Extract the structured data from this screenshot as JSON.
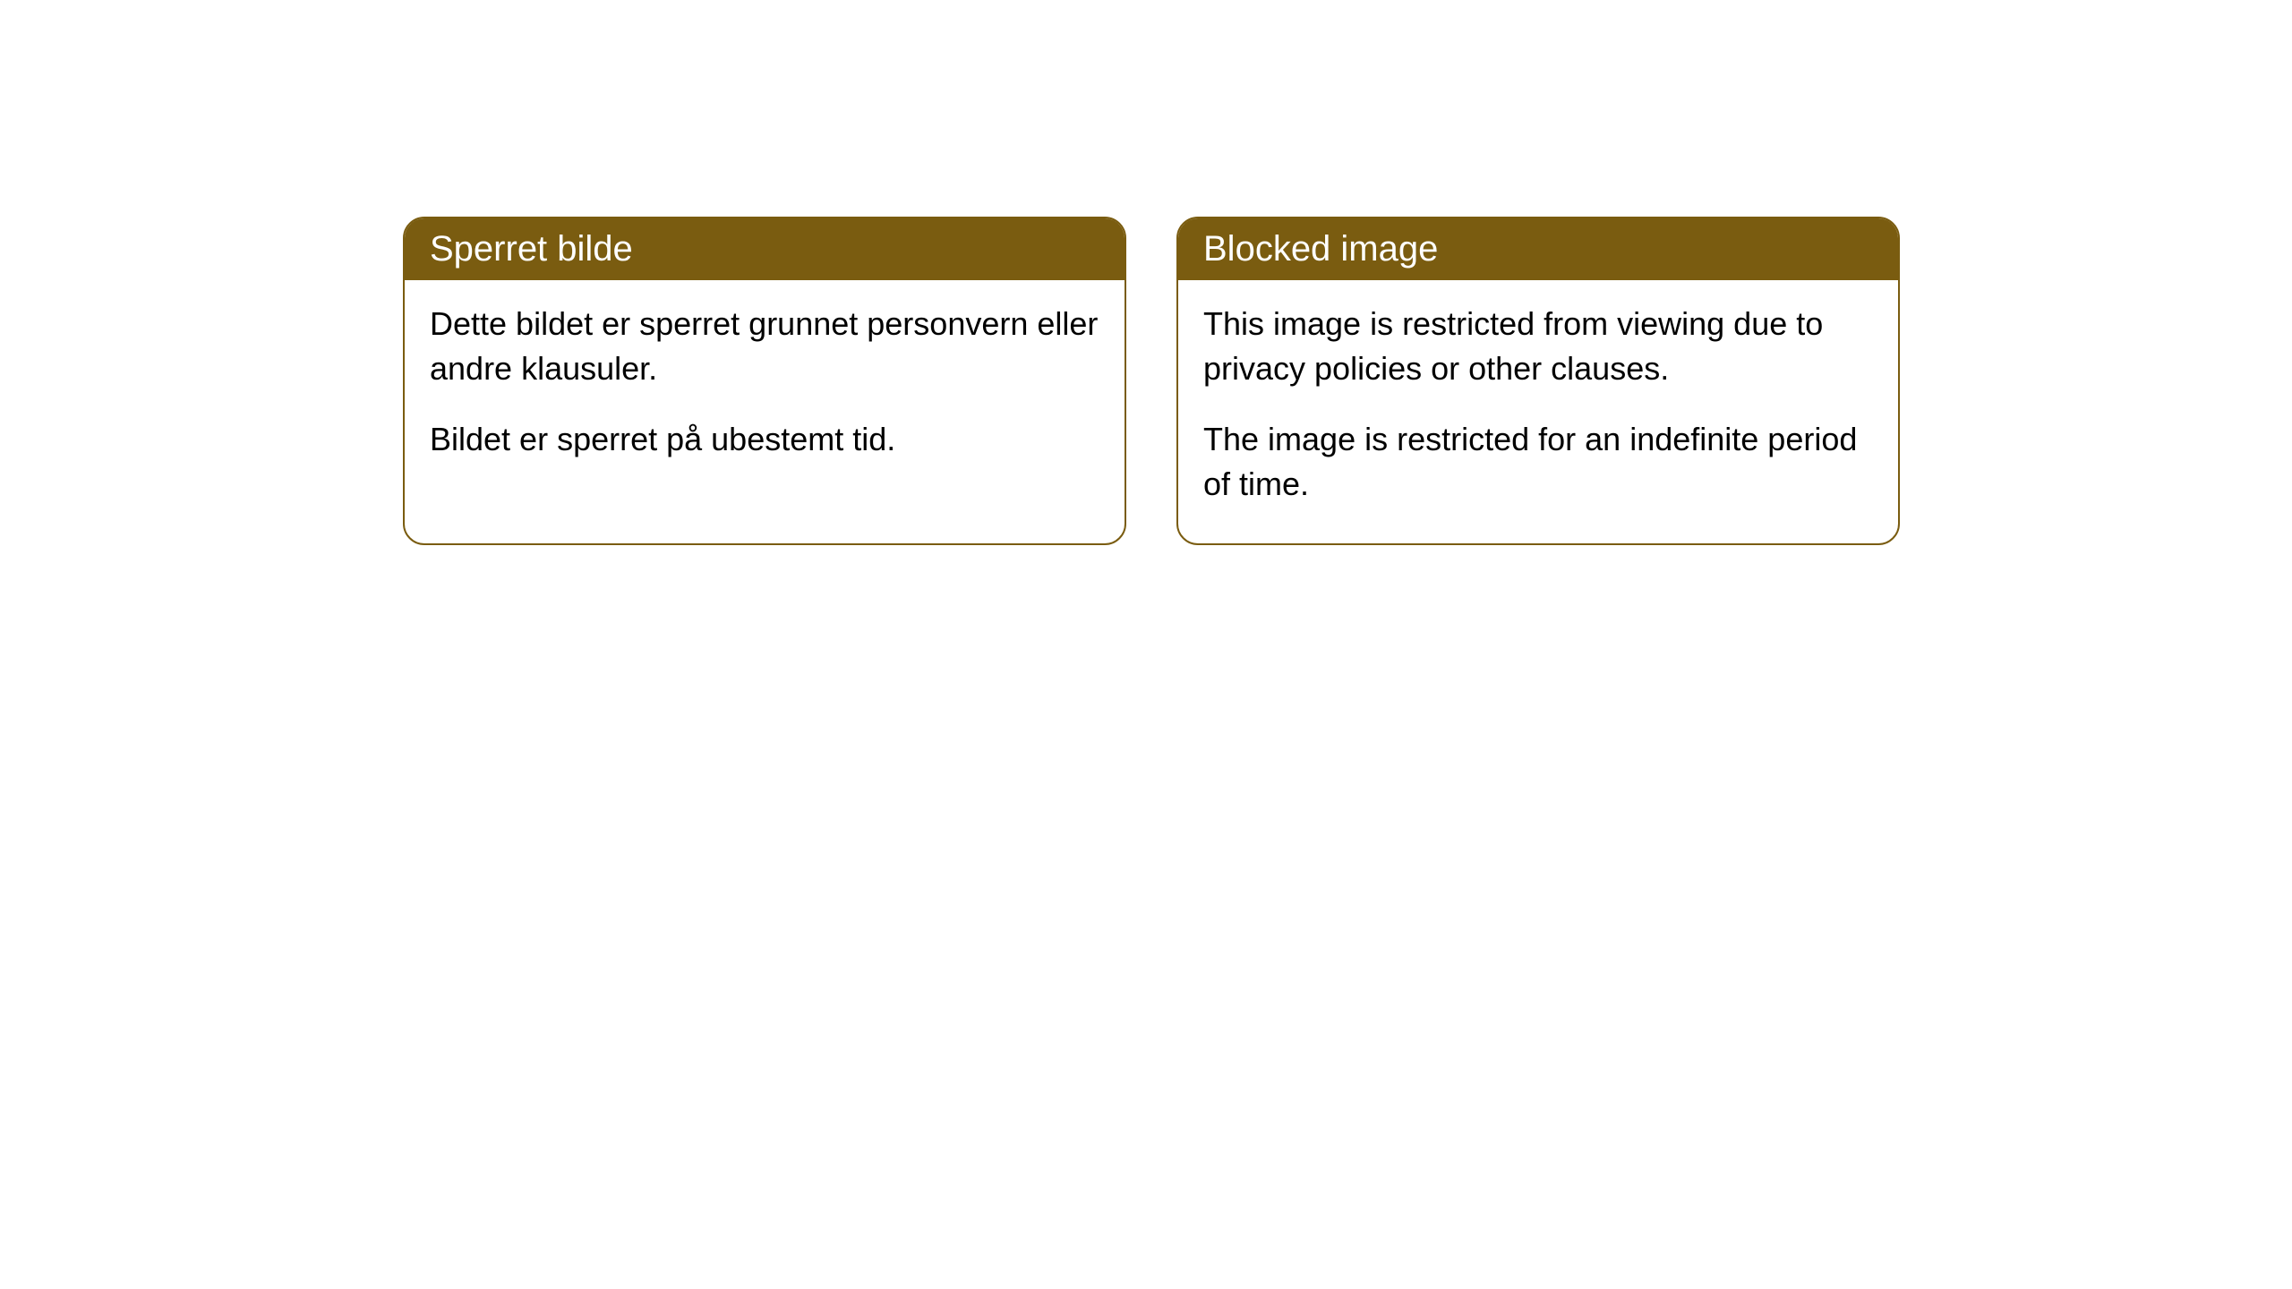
{
  "cards": [
    {
      "title": "Sperret bilde",
      "paragraph1": "Dette bildet er sperret grunnet personvern eller andre klausuler.",
      "paragraph2": "Bildet er sperret på ubestemt tid."
    },
    {
      "title": "Blocked image",
      "paragraph1": "This image is restricted from viewing due to privacy policies or other clauses.",
      "paragraph2": "The image is restricted for an indefinite period of time."
    }
  ],
  "styling": {
    "header_background": "#7a5c10",
    "header_text_color": "#ffffff",
    "border_color": "#7a5c10",
    "body_background": "#ffffff",
    "body_text_color": "#000000",
    "border_radius": 24,
    "title_fontsize": 40,
    "body_fontsize": 36
  }
}
